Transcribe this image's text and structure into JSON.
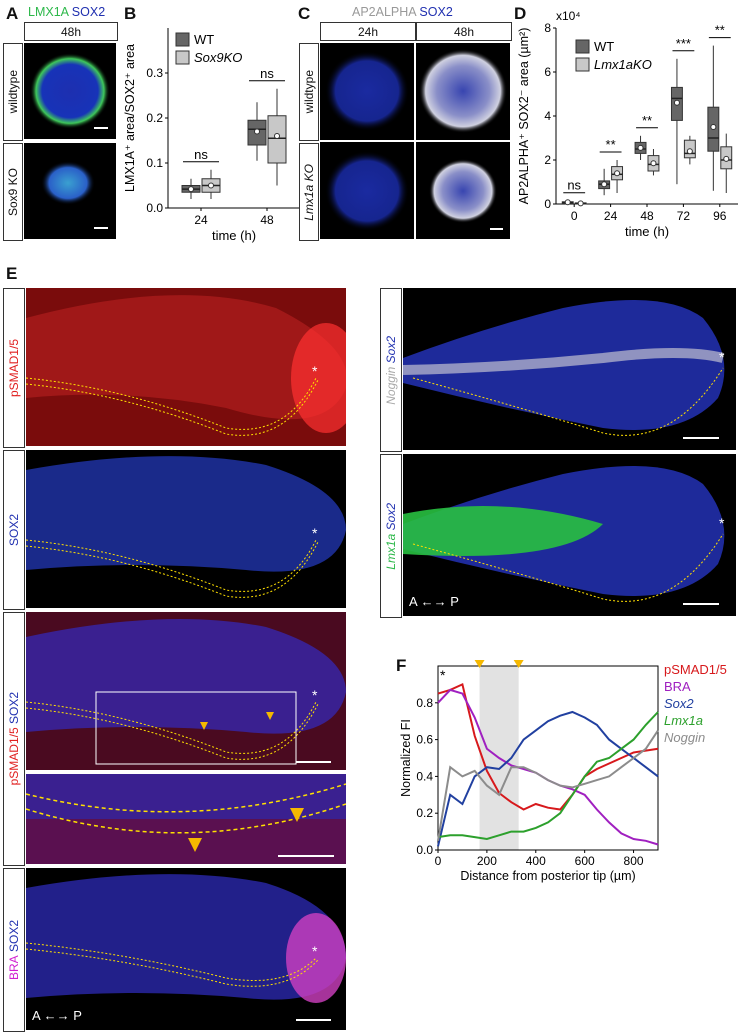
{
  "panels": {
    "A": {
      "label": "A",
      "stain1": "LMX1A",
      "stain2": "SOX2",
      "time": "48h",
      "rows": [
        "wildtype",
        "Sox9 KO"
      ]
    },
    "B": {
      "label": "B"
    },
    "C": {
      "label": "C",
      "stain1": "AP2ALPHA",
      "stain2": "SOX2",
      "times": [
        "24h",
        "48h"
      ],
      "rows": [
        "wildtype",
        "Lmx1a KO"
      ]
    },
    "D": {
      "label": "D",
      "exponent": "x10⁴"
    },
    "E": {
      "label": "E",
      "rows": [
        {
          "s1": "pSMAD1/5",
          "s2": ""
        },
        {
          "s1": "",
          "s2": "SOX2"
        },
        {
          "s1": "pSMAD1/5",
          "s2": "SOX2"
        },
        {
          "s1": "BRA",
          "s2": "SOX2"
        }
      ],
      "right_rows": [
        {
          "s1": "Noggin",
          "s2": "Sox2"
        },
        {
          "s1": "Lmx1a",
          "s2": "Sox2"
        }
      ],
      "axis_a": "A",
      "axis_p": "P",
      "asterisk": "*"
    },
    "F": {
      "label": "F",
      "asterisk": "*"
    }
  },
  "chart_data": [
    {
      "type": "box",
      "id": "B",
      "categories": [
        "24",
        "48"
      ],
      "xlabel": "time (h)",
      "ylabel": "LMX1A⁺ area/SOX2⁺ area",
      "ylim": [
        0,
        0.4
      ],
      "yticks": [
        "0.0",
        "0.1",
        "0.2",
        "0.3"
      ],
      "legend": [
        "WT",
        "Sox9KO"
      ],
      "colors": {
        "WT": "#666666",
        "Sox9KO": "#c8c8c8"
      },
      "series": [
        {
          "name": "WT",
          "boxes": [
            {
              "min": 0.02,
              "q1": 0.035,
              "median": 0.042,
              "q3": 0.05,
              "max": 0.065,
              "mean": 0.042
            },
            {
              "min": 0.105,
              "q1": 0.14,
              "median": 0.175,
              "q3": 0.195,
              "max": 0.235,
              "mean": 0.17
            }
          ]
        },
        {
          "name": "Sox9KO",
          "boxes": [
            {
              "min": 0.02,
              "q1": 0.035,
              "median": 0.05,
              "q3": 0.065,
              "max": 0.085,
              "mean": 0.05
            },
            {
              "min": 0.05,
              "q1": 0.1,
              "median": 0.155,
              "q3": 0.205,
              "max": 0.265,
              "mean": 0.16
            }
          ]
        }
      ],
      "annotations": [
        "ns",
        "ns"
      ]
    },
    {
      "type": "box",
      "id": "D",
      "categories": [
        "0",
        "24",
        "48",
        "72",
        "96"
      ],
      "xlabel": "time (h)",
      "ylabel": "AP2ALPHA⁺ SOX2⁻ area (µm²)",
      "ylim": [
        0,
        8
      ],
      "yticks": [
        "0",
        "2",
        "4",
        "6",
        "8"
      ],
      "legend": [
        "WT",
        "Lmx1aKO"
      ],
      "colors": {
        "WT": "#666666",
        "Lmx1aKO": "#c8c8c8"
      },
      "series": [
        {
          "name": "WT",
          "boxes": [
            {
              "min": 0.02,
              "q1": 0.05,
              "median": 0.08,
              "q3": 0.1,
              "max": 0.15,
              "mean": 0.08
            },
            {
              "min": 0.4,
              "q1": 0.7,
              "median": 0.9,
              "q3": 1.05,
              "max": 1.6,
              "mean": 0.9
            },
            {
              "min": 2.0,
              "q1": 2.3,
              "median": 2.5,
              "q3": 2.8,
              "max": 3.1,
              "mean": 2.55
            },
            {
              "min": 0.9,
              "q1": 3.8,
              "median": 4.8,
              "q3": 5.3,
              "max": 6.6,
              "mean": 4.6
            },
            {
              "min": 0.6,
              "q1": 2.4,
              "median": 3.0,
              "q3": 4.4,
              "max": 7.2,
              "mean": 3.5
            }
          ]
        },
        {
          "name": "Lmx1aKO",
          "boxes": [
            {
              "min": 0.0,
              "q1": 0.02,
              "median": 0.03,
              "q3": 0.05,
              "max": 0.08,
              "mean": 0.03
            },
            {
              "min": 0.5,
              "q1": 1.1,
              "median": 1.35,
              "q3": 1.7,
              "max": 2.0,
              "mean": 1.4
            },
            {
              "min": 1.3,
              "q1": 1.5,
              "median": 1.8,
              "q3": 2.2,
              "max": 2.5,
              "mean": 1.85
            },
            {
              "min": 1.8,
              "q1": 2.1,
              "median": 2.3,
              "q3": 2.9,
              "max": 3.1,
              "mean": 2.4
            },
            {
              "min": 0.5,
              "q1": 1.6,
              "median": 2.0,
              "q3": 2.6,
              "max": 3.2,
              "mean": 2.05
            }
          ]
        }
      ],
      "annotations": [
        "ns",
        "**",
        "**",
        "***",
        "**"
      ]
    },
    {
      "type": "line",
      "id": "F",
      "xlabel": "Distance from posterior tip (µm)",
      "ylabel": "Normalized FI",
      "xlim": [
        0,
        900
      ],
      "ylim": [
        0,
        1.0
      ],
      "xticks": [
        "0",
        "200",
        "400",
        "600",
        "800"
      ],
      "yticks": [
        "0.0",
        "0.2",
        "0.4",
        "0.6",
        "0.8"
      ],
      "shaded_region": [
        170,
        330
      ],
      "arrowheads": [
        170,
        330
      ],
      "x": [
        0,
        50,
        100,
        150,
        200,
        250,
        300,
        350,
        400,
        450,
        500,
        550,
        600,
        650,
        700,
        750,
        800,
        850,
        900
      ],
      "series": [
        {
          "name": "pSMAD1/5",
          "color": "#d7191c",
          "values": [
            0.85,
            0.87,
            0.9,
            0.62,
            0.43,
            0.31,
            0.26,
            0.22,
            0.25,
            0.23,
            0.22,
            0.3,
            0.4,
            0.44,
            0.47,
            0.5,
            0.53,
            0.54,
            0.55
          ]
        },
        {
          "name": "BRA",
          "color": "#a020c0",
          "values": [
            0.8,
            0.87,
            0.85,
            0.72,
            0.55,
            0.5,
            0.46,
            0.44,
            0.42,
            0.38,
            0.35,
            0.33,
            0.3,
            0.22,
            0.15,
            0.09,
            0.06,
            0.05,
            0.03
          ]
        },
        {
          "name": "Sox2",
          "color": "#2140a0",
          "values": [
            0.02,
            0.3,
            0.25,
            0.4,
            0.45,
            0.44,
            0.5,
            0.6,
            0.65,
            0.7,
            0.73,
            0.75,
            0.72,
            0.68,
            0.6,
            0.55,
            0.5,
            0.45,
            0.4
          ]
        },
        {
          "name": "Lmx1a",
          "color": "#2ca02c",
          "values": [
            0.07,
            0.08,
            0.08,
            0.07,
            0.06,
            0.08,
            0.1,
            0.1,
            0.12,
            0.15,
            0.2,
            0.3,
            0.4,
            0.48,
            0.5,
            0.55,
            0.6,
            0.68,
            0.75
          ]
        },
        {
          "name": "Noggin",
          "color": "#8c8c8c",
          "values": [
            0.05,
            0.45,
            0.4,
            0.43,
            0.35,
            0.3,
            0.45,
            0.45,
            0.42,
            0.38,
            0.35,
            0.34,
            0.36,
            0.38,
            0.4,
            0.45,
            0.5,
            0.55,
            0.65
          ]
        }
      ]
    }
  ]
}
